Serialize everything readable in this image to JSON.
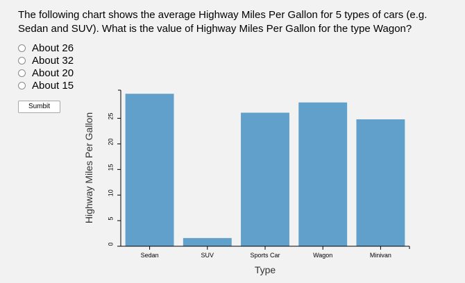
{
  "question": "The following chart shows the average Highway Miles Per Gallon for 5 types of cars (e.g. Sedan and SUV). What is the value of Highway Miles Per Gallon for the type Wagon?",
  "options": [
    "About 26",
    "About 32",
    "About 20",
    "About 15"
  ],
  "submit_label": "Sumbit",
  "chart_data": {
    "type": "bar",
    "categories": [
      "Sedan",
      "SUV",
      "Sports Car",
      "Wagon",
      "Minivan"
    ],
    "values": [
      29.8,
      1.6,
      26.1,
      28.1,
      24.8
    ],
    "xlabel": "Type",
    "ylabel": "Highway Miles Per Gallon",
    "ylim": [
      0,
      30.5
    ],
    "yticks": [
      0,
      5,
      10,
      15,
      20,
      25
    ],
    "bar_color": "#62a0cc",
    "grid": false
  }
}
